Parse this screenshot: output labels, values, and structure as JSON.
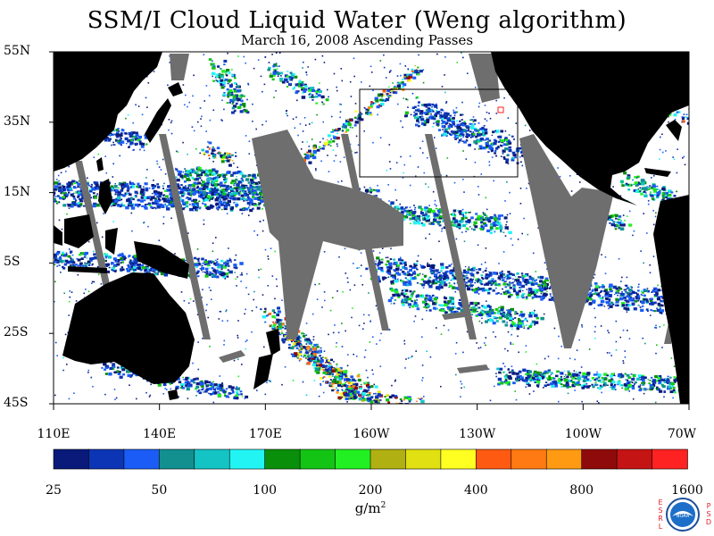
{
  "title": "SSM/I Cloud Liquid Water (Weng algorithm)",
  "subtitle": "March 16, 2008  Ascending Passes",
  "lat_labels": [
    {
      "text": "55N",
      "lat": 55
    },
    {
      "text": "35N",
      "lat": 35
    },
    {
      "text": "15N",
      "lat": 15
    },
    {
      "text": "5S",
      "lat": -5
    },
    {
      "text": "25S",
      "lat": -25
    },
    {
      "text": "45S",
      "lat": -45
    }
  ],
  "lon_labels": [
    "110E",
    "140E",
    "170E",
    "160W",
    "130W",
    "100W",
    "70W"
  ],
  "colorbar": {
    "colors": [
      "#0a1a7a",
      "#0c35b5",
      "#1a5cf5",
      "#129090",
      "#14c4c4",
      "#22f4f4",
      "#0a8f0a",
      "#14c414",
      "#22f022",
      "#b0b012",
      "#e0e012",
      "#ffff22",
      "#ff5a12",
      "#ff7a12",
      "#ff9a12",
      "#8f0a0a",
      "#c41414",
      "#ff2222"
    ],
    "labels": [
      "25",
      "50",
      "100",
      "200",
      "400",
      "800",
      "1600"
    ]
  },
  "units": {
    "base": "g/m",
    "exp": "2"
  },
  "logo": {
    "left_text": "ESRL",
    "right_text": "PSD",
    "center_text": "NOAA"
  },
  "palette": {
    "land": "#000000",
    "no_data": "#6e6e6e",
    "ocean_clear": "#ffffff",
    "box": "#000000"
  }
}
